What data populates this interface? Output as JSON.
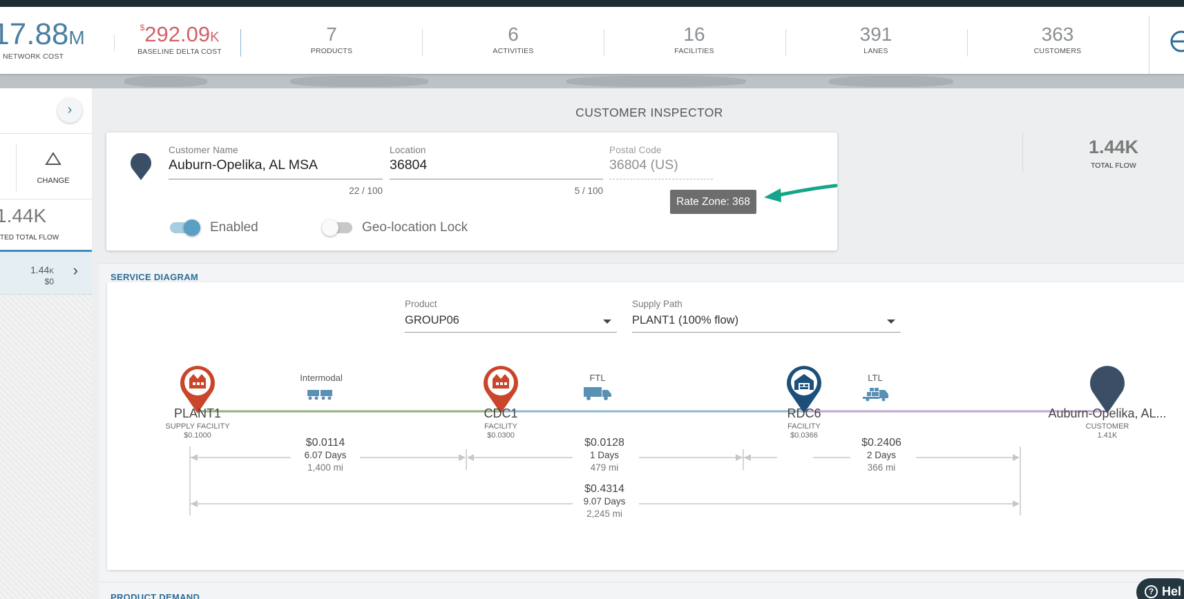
{
  "metrics": {
    "network_cost": {
      "value": "17.88",
      "suffix": "M",
      "label": "NETWORK COST"
    },
    "baseline_delta": {
      "prefix": "$",
      "value": "292.09",
      "suffix": "K",
      "label": "BASELINE DELTA COST"
    },
    "products": {
      "value": "7",
      "label": "PRODUCTS"
    },
    "activities": {
      "value": "6",
      "label": "ACTIVITIES"
    },
    "facilities": {
      "value": "16",
      "label": "FACILITIES"
    },
    "lanes": {
      "value": "391",
      "label": "LANES"
    },
    "customers": {
      "value": "363",
      "label": "CUSTOMERS"
    }
  },
  "left_panel": {
    "change_label": "CHANGE",
    "flow_value": "1.44K",
    "flow_label": "TED TOTAL FLOW",
    "row_value": "1.44",
    "row_value_suffix": "K",
    "row_cost": "$0"
  },
  "inspector": {
    "title": "CUSTOMER INSPECTOR",
    "customer_name": {
      "label": "Customer Name",
      "value": "Auburn-Opelika, AL MSA",
      "counter": "22 / 100"
    },
    "location": {
      "label": "Location",
      "value": "36804",
      "counter": "5 / 100"
    },
    "postal_code": {
      "label": "Postal Code",
      "value": "36804 (US)"
    },
    "rate_zone_tooltip": "Rate Zone: 368",
    "enabled_label": "Enabled",
    "enabled": true,
    "geo_lock_label": "Geo-location Lock",
    "geo_lock": false,
    "total_flow_value": "1.44K",
    "total_flow_label": "TOTAL FLOW"
  },
  "service_diagram": {
    "title": "SERVICE DIAGRAM",
    "product": {
      "label": "Product",
      "value": "GROUP06"
    },
    "supply_path": {
      "label": "Supply Path",
      "value": "PLANT1 (100% flow)"
    },
    "nodes": [
      {
        "name": "PLANT1",
        "type": "SUPPLY FACILITY",
        "value": "$0.1000",
        "color": "#c9462a",
        "icon": "factory-icon"
      },
      {
        "name": "CDC1",
        "type": "FACILITY",
        "value": "$0.0300",
        "color": "#c9462a",
        "icon": "factory-icon"
      },
      {
        "name": "RDC6",
        "type": "FACILITY",
        "value": "$0.0366",
        "color": "#1c4f7c",
        "icon": "warehouse-icon"
      },
      {
        "name": "Auburn-Opelika, AL...",
        "type": "CUSTOMER",
        "value": "1.41K",
        "color": "#3a4f66",
        "icon": "customer-pin-icon"
      }
    ],
    "legs": [
      {
        "mode": "Intermodal",
        "icon": "railcar-icon",
        "cost": "$0.0114",
        "days": "6.07 Days",
        "distance": "1,400 mi",
        "color": "#8fb07f"
      },
      {
        "mode": "FTL",
        "icon": "truck-icon",
        "cost": "$0.0128",
        "days": "1 Days",
        "distance": "479 mi",
        "color": "#8db7cc"
      },
      {
        "mode": "LTL",
        "icon": "ltl-truck-icon",
        "cost": "$0.2406",
        "days": "2 Days",
        "distance": "366 mi",
        "color": "#bfa6d6"
      }
    ],
    "total": {
      "cost": "$0.4314",
      "days": "9.07 Days",
      "distance": "2,245 mi"
    }
  },
  "product_demand": {
    "title": "PRODUCT DEMAND"
  },
  "help": {
    "label": "Hel"
  },
  "colors": {
    "accent": "#4a7fa1",
    "delta": "#d06068",
    "section_title": "#2b6e99",
    "arrow": "#16a58c"
  }
}
